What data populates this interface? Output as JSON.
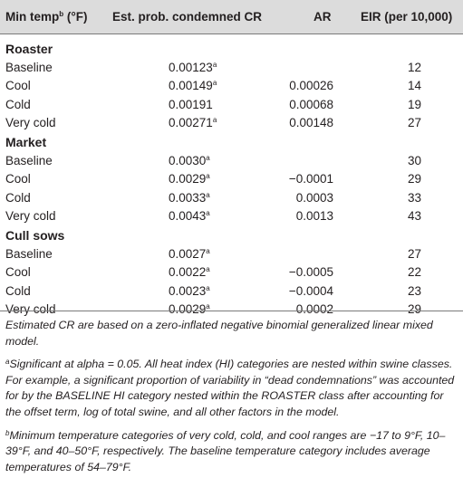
{
  "header": {
    "col1": "Min temp",
    "col1_sup": "b",
    "col1_unit": " (°F)",
    "col2": "Est. prob. condemned CR",
    "col3": "AR",
    "col4": "EIR (per 10,000)"
  },
  "groups": [
    {
      "name": "Roaster",
      "rows": [
        {
          "temp": "Baseline",
          "prob": "0.00123",
          "sig": "a",
          "ar": "",
          "eir": "12"
        },
        {
          "temp": "Cool",
          "prob": "0.00149",
          "sig": "a",
          "ar": "0.00026",
          "eir": "14"
        },
        {
          "temp": "Cold",
          "prob": "0.00191",
          "sig": "",
          "ar": "0.00068",
          "eir": "19"
        },
        {
          "temp": "Very cold",
          "prob": "0.00271",
          "sig": "a",
          "ar": "0.00148",
          "eir": "27"
        }
      ]
    },
    {
      "name": "Market",
      "rows": [
        {
          "temp": "Baseline",
          "prob": "0.0030",
          "sig": "a",
          "ar": "",
          "eir": "30"
        },
        {
          "temp": "Cool",
          "prob": "0.0029",
          "sig": "a",
          "ar": "−0.0001",
          "eir": "29"
        },
        {
          "temp": "Cold",
          "prob": "0.0033",
          "sig": "a",
          "ar": "0.0003",
          "eir": "33"
        },
        {
          "temp": "Very cold",
          "prob": "0.0043",
          "sig": "a",
          "ar": "0.0013",
          "eir": "43"
        }
      ]
    },
    {
      "name": "Cull sows",
      "rows": [
        {
          "temp": "Baseline",
          "prob": "0.0027",
          "sig": "a",
          "ar": "",
          "eir": "27"
        },
        {
          "temp": "Cool",
          "prob": "0.0022",
          "sig": "a",
          "ar": "−0.0005",
          "eir": "22"
        },
        {
          "temp": "Cold",
          "prob": "0.0023",
          "sig": "a",
          "ar": "−0.0004",
          "eir": "23"
        },
        {
          "temp": "Very cold",
          "prob": "0.0029",
          "sig": "a",
          "ar": "0.0002",
          "eir": "29"
        }
      ]
    }
  ],
  "notes": {
    "main": "Estimated CR are based on a zero-inflated negative binomial generalized linear mixed model.",
    "a_mark": "a",
    "a_text": "Significant at alpha = 0.05. All heat index (HI) categories are nested within swine classes. For example, a significant proportion of variability in “dead condemnations” was accounted for by the BASELINE HI category nested within the ROASTER class after accounting for the offset term, log of total swine, and all other factors in the model.",
    "b_mark": "b",
    "b_text": "Minimum temperature categories of very cold, cold, and cool ranges are −17 to 9°F, 10–39°F, and 40–50°F, respectively. The baseline temperature category includes average temperatures of 54–79°F."
  }
}
